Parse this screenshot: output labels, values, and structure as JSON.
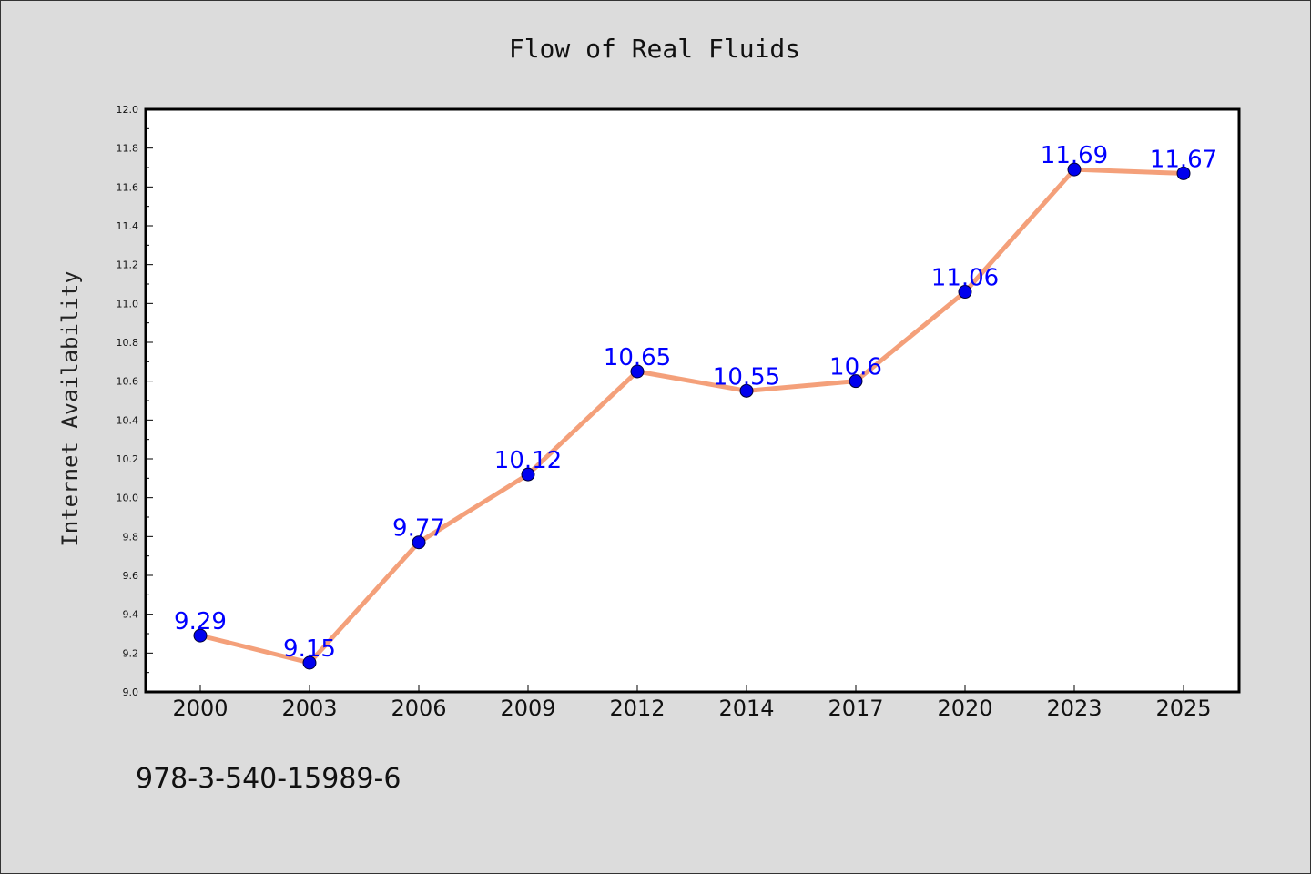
{
  "footer_text": "978-3-540-15989-6",
  "colors": {
    "background": "#dcdcdc",
    "plot_background": "#ffffff",
    "line": "#f4a07a",
    "marker": "#0000ee",
    "data_label": "#0000ff"
  },
  "chart_data": {
    "type": "line",
    "title": "Flow of Real Fluids",
    "xlabel": "",
    "ylabel": "Internet Availability",
    "categories": [
      "2000",
      "2003",
      "2006",
      "2009",
      "2012",
      "2014",
      "2017",
      "2020",
      "2023",
      "2025"
    ],
    "series": [
      {
        "values": [
          9.29,
          9.15,
          9.77,
          10.12,
          10.65,
          10.55,
          10.6,
          11.06,
          11.69,
          11.67
        ],
        "data_labels": [
          "9.29",
          "9.15",
          "9.77",
          "10.12",
          "10.65",
          "10.55",
          "10.6",
          "11.06",
          "11.69",
          "11.67"
        ]
      }
    ],
    "ylim": [
      9.0,
      12.0
    ],
    "yticks": [
      "9.0",
      "9.2",
      "9.4",
      "9.6",
      "9.8",
      "10.0",
      "10.2",
      "10.4",
      "10.6",
      "10.8",
      "11.0",
      "11.2",
      "11.4",
      "11.6",
      "11.8",
      "12.0"
    ],
    "grid": false,
    "legend": "none"
  }
}
